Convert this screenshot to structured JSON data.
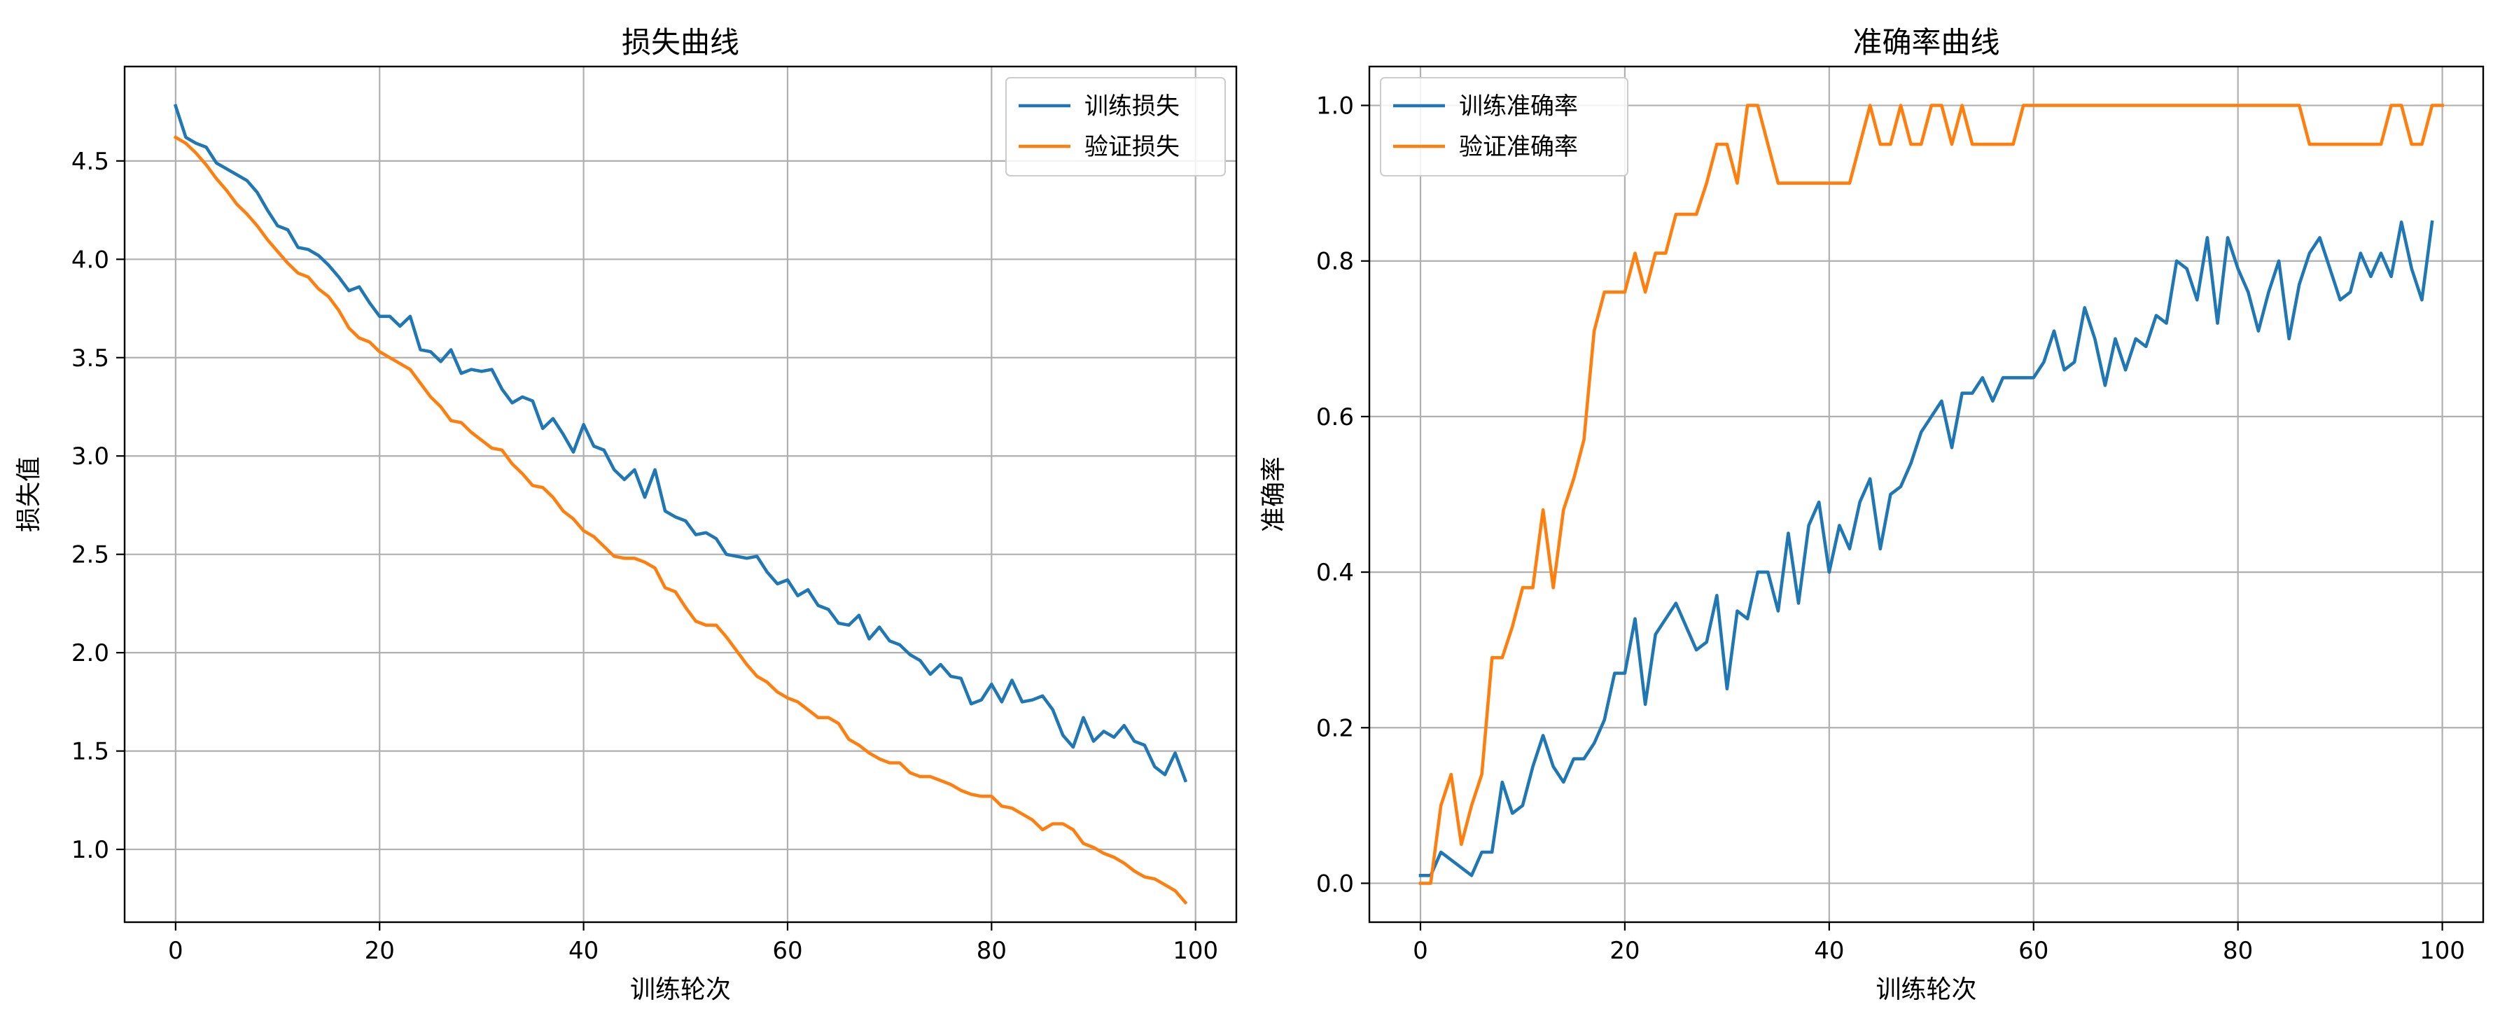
{
  "chart_data": [
    {
      "type": "line",
      "title": "损失曲线",
      "xlabel": "训练轮次",
      "ylabel": "损失值",
      "xlim": [
        -5,
        104
      ],
      "ylim": [
        0.63,
        4.98
      ],
      "xticks": [
        0,
        20,
        40,
        60,
        80,
        100
      ],
      "yticks": [
        1.0,
        1.5,
        2.0,
        2.5,
        3.0,
        3.5,
        4.0,
        4.5
      ],
      "xtick_labels": [
        "0",
        "20",
        "40",
        "60",
        "80",
        "100"
      ],
      "ytick_labels": [
        "1.0",
        "1.5",
        "2.0",
        "2.5",
        "3.0",
        "3.5",
        "4.0",
        "4.5"
      ],
      "grid": true,
      "legend_position": "top-right",
      "series": [
        {
          "name": "训练损失",
          "color": "#1f77b4",
          "values": [
            4.78,
            4.62,
            4.59,
            4.57,
            4.49,
            4.46,
            4.43,
            4.4,
            4.34,
            4.25,
            4.17,
            4.15,
            4.06,
            4.05,
            4.02,
            3.97,
            3.91,
            3.84,
            3.86,
            3.78,
            3.71,
            3.71,
            3.66,
            3.71,
            3.54,
            3.53,
            3.48,
            3.54,
            3.42,
            3.44,
            3.43,
            3.44,
            3.34,
            3.27,
            3.3,
            3.28,
            3.14,
            3.19,
            3.11,
            3.02,
            3.16,
            3.05,
            3.03,
            2.93,
            2.88,
            2.93,
            2.79,
            2.93,
            2.72,
            2.69,
            2.67,
            2.6,
            2.61,
            2.58,
            2.5,
            2.49,
            2.48,
            2.49,
            2.41,
            2.35,
            2.37,
            2.29,
            2.32,
            2.24,
            2.22,
            2.15,
            2.14,
            2.19,
            2.07,
            2.13,
            2.06,
            2.04,
            1.99,
            1.96,
            1.89,
            1.94,
            1.88,
            1.87,
            1.74,
            1.76,
            1.84,
            1.75,
            1.86,
            1.75,
            1.76,
            1.78,
            1.71,
            1.58,
            1.52,
            1.67,
            1.55,
            1.6,
            1.57,
            1.63,
            1.55,
            1.53,
            1.42,
            1.38,
            1.49,
            1.35
          ]
        },
        {
          "name": "验证损失",
          "color": "#ff7f0e",
          "values": [
            4.62,
            4.59,
            4.54,
            4.48,
            4.41,
            4.35,
            4.28,
            4.23,
            4.17,
            4.1,
            4.04,
            3.98,
            3.93,
            3.91,
            3.85,
            3.81,
            3.74,
            3.65,
            3.6,
            3.58,
            3.53,
            3.5,
            3.47,
            3.44,
            3.37,
            3.3,
            3.25,
            3.18,
            3.17,
            3.12,
            3.08,
            3.04,
            3.03,
            2.96,
            2.91,
            2.85,
            2.84,
            2.79,
            2.72,
            2.68,
            2.62,
            2.59,
            2.54,
            2.49,
            2.48,
            2.48,
            2.46,
            2.43,
            2.33,
            2.31,
            2.23,
            2.16,
            2.14,
            2.14,
            2.08,
            2.01,
            1.94,
            1.88,
            1.85,
            1.8,
            1.77,
            1.75,
            1.71,
            1.67,
            1.67,
            1.64,
            1.56,
            1.53,
            1.49,
            1.46,
            1.44,
            1.44,
            1.39,
            1.37,
            1.37,
            1.35,
            1.33,
            1.3,
            1.28,
            1.27,
            1.27,
            1.22,
            1.21,
            1.18,
            1.15,
            1.1,
            1.13,
            1.13,
            1.1,
            1.03,
            1.01,
            0.98,
            0.96,
            0.93,
            0.89,
            0.86,
            0.85,
            0.82,
            0.79,
            0.73
          ]
        }
      ]
    },
    {
      "type": "line",
      "title": "准确率曲线",
      "xlabel": "训练轮次",
      "ylabel": "准确率",
      "xlim": [
        -5,
        104
      ],
      "ylim": [
        -0.05,
        1.05
      ],
      "xticks": [
        0,
        20,
        40,
        60,
        80,
        100
      ],
      "yticks": [
        0.0,
        0.2,
        0.4,
        0.6,
        0.8,
        1.0
      ],
      "xtick_labels": [
        "0",
        "20",
        "40",
        "60",
        "80",
        "100"
      ],
      "ytick_labels": [
        "0.0",
        "0.2",
        "0.4",
        "0.6",
        "0.8",
        "1.0"
      ],
      "grid": true,
      "legend_position": "top-left",
      "series": [
        {
          "name": "训练准确率",
          "color": "#1f77b4",
          "values": [
            0.01,
            0.01,
            0.04,
            0.03,
            0.02,
            0.01,
            0.04,
            0.04,
            0.13,
            0.09,
            0.1,
            0.15,
            0.19,
            0.15,
            0.13,
            0.16,
            0.16,
            0.18,
            0.21,
            0.27,
            0.27,
            0.34,
            0.23,
            0.32,
            0.34,
            0.36,
            0.33,
            0.3,
            0.31,
            0.37,
            0.25,
            0.35,
            0.34,
            0.4,
            0.4,
            0.35,
            0.45,
            0.36,
            0.46,
            0.49,
            0.4,
            0.46,
            0.43,
            0.49,
            0.52,
            0.43,
            0.5,
            0.51,
            0.54,
            0.58,
            0.6,
            0.62,
            0.56,
            0.63,
            0.63,
            0.65,
            0.62,
            0.65,
            0.65,
            0.65,
            0.65,
            0.67,
            0.71,
            0.66,
            0.67,
            0.74,
            0.7,
            0.64,
            0.7,
            0.66,
            0.7,
            0.69,
            0.73,
            0.72,
            0.8,
            0.79,
            0.75,
            0.83,
            0.72,
            0.83,
            0.79,
            0.76,
            0.71,
            0.76,
            0.8,
            0.7,
            0.77,
            0.81,
            0.83,
            0.79,
            0.75,
            0.76,
            0.81,
            0.78,
            0.81,
            0.78,
            0.85,
            0.79,
            0.75,
            0.85
          ]
        },
        {
          "name": "验证准确率",
          "color": "#ff7f0e",
          "values": [
            0.0,
            0.0,
            0.1,
            0.14,
            0.05,
            0.1,
            0.14,
            0.29,
            0.29,
            0.33,
            0.38,
            0.38,
            0.48,
            0.38,
            0.48,
            0.52,
            0.57,
            0.71,
            0.76,
            0.76,
            0.76,
            0.81,
            0.76,
            0.81,
            0.81,
            0.86,
            0.86,
            0.86,
            0.9,
            0.95,
            0.95,
            0.9,
            1.0,
            1.0,
            0.95,
            0.9,
            0.9,
            0.9,
            0.9,
            0.9,
            0.9,
            0.9,
            0.9,
            0.95,
            1.0,
            0.95,
            0.95,
            1.0,
            0.95,
            0.95,
            1.0,
            1.0,
            0.95,
            1.0,
            0.95,
            0.95,
            0.95,
            0.95,
            0.95,
            1.0,
            1.0,
            1.0,
            1.0,
            1.0,
            1.0,
            1.0,
            1.0,
            1.0,
            1.0,
            1.0,
            1.0,
            1.0,
            1.0,
            1.0,
            1.0,
            1.0,
            1.0,
            1.0,
            1.0,
            1.0,
            1.0,
            1.0,
            1.0,
            1.0,
            1.0,
            1.0,
            1.0,
            0.95,
            0.95,
            0.95,
            0.95,
            0.95,
            0.95,
            0.95,
            0.95,
            1.0,
            1.0,
            0.95,
            0.95,
            1.0,
            1.0
          ]
        }
      ]
    }
  ]
}
